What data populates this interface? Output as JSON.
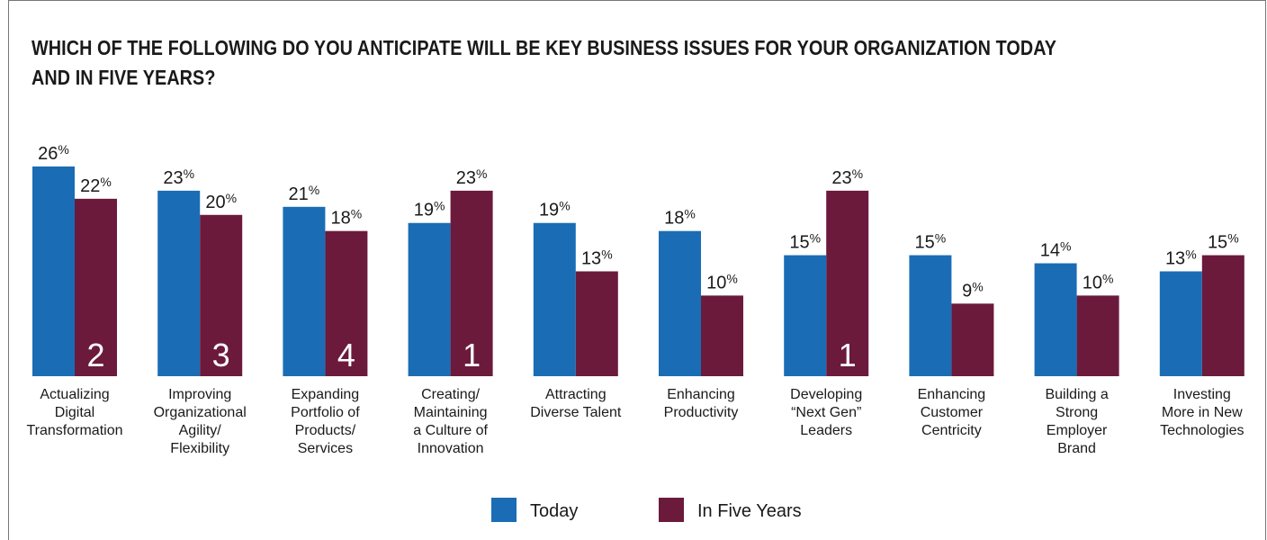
{
  "chart_data": {
    "type": "bar",
    "title": "WHICH OF THE FOLLOWING DO YOU ANTICIPATE WILL BE KEY BUSINESS ISSUES FOR YOUR ORGANIZATION TODAY AND IN FIVE YEARS?",
    "categories": [
      [
        "Actualizing",
        "Digital",
        "Transformation"
      ],
      [
        "Improving",
        "Organizational",
        "Agility/",
        "Flexibility"
      ],
      [
        "Expanding",
        "Portfolio of",
        "Products/",
        "Services"
      ],
      [
        "Creating/",
        "Maintaining",
        "a Culture of",
        "Innovation"
      ],
      [
        "Attracting",
        "Diverse Talent"
      ],
      [
        "Enhancing",
        "Productivity"
      ],
      [
        "Developing",
        "“Next Gen”",
        "Leaders"
      ],
      [
        "Enhancing",
        "Customer",
        "Centricity"
      ],
      [
        "Building a",
        "Strong",
        "Employer",
        "Brand"
      ],
      [
        "Investing",
        "More in New",
        "Technologies"
      ]
    ],
    "series": [
      {
        "name": "Today",
        "color": "#1a6db5",
        "values": [
          26,
          23,
          21,
          19,
          19,
          18,
          15,
          15,
          14,
          13
        ]
      },
      {
        "name": "In Five Years",
        "color": "#6b1a3c",
        "values": [
          22,
          20,
          18,
          23,
          13,
          10,
          23,
          9,
          10,
          15
        ]
      }
    ],
    "rank_labels": [
      "2",
      "3",
      "4",
      "1",
      "",
      "",
      "1",
      "",
      "",
      ""
    ],
    "value_suffix": "%",
    "ylim": [
      0,
      26
    ],
    "legend_position": "bottom-center",
    "grid": false
  }
}
